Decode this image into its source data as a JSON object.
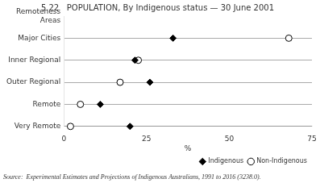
{
  "chart_data": {
    "type": "dot",
    "title": "5.22   POPULATION, By Indigenous status — 30 June 2001",
    "subtitle": "Source:  Experimental Estimates and Projections of Indigenous Australians, 1991 to 2016 (3238.0).",
    "orientation": "horizontal",
    "categories": [
      "Remoteness\nAreas",
      "Major Cities",
      "Inner Regional",
      "Outer Regional",
      "Remote",
      "Very Remote"
    ],
    "series": [
      {
        "name": "Indigenous",
        "color": "black",
        "marker": "diamond",
        "values": [
          null,
          33.0,
          21.5,
          26.0,
          11.0,
          20.0
        ]
      },
      {
        "name": "Non-Indigenous",
        "color": "white",
        "marker": "circle",
        "values": [
          null,
          68.0,
          22.5,
          17.0,
          5.0,
          2.0
        ]
      }
    ],
    "xlabel": "%",
    "xlim": [
      0,
      75
    ],
    "xticks": [
      0,
      25,
      50,
      75
    ],
    "grid": "y",
    "line_style": "dashed",
    "legend": "lower right"
  }
}
